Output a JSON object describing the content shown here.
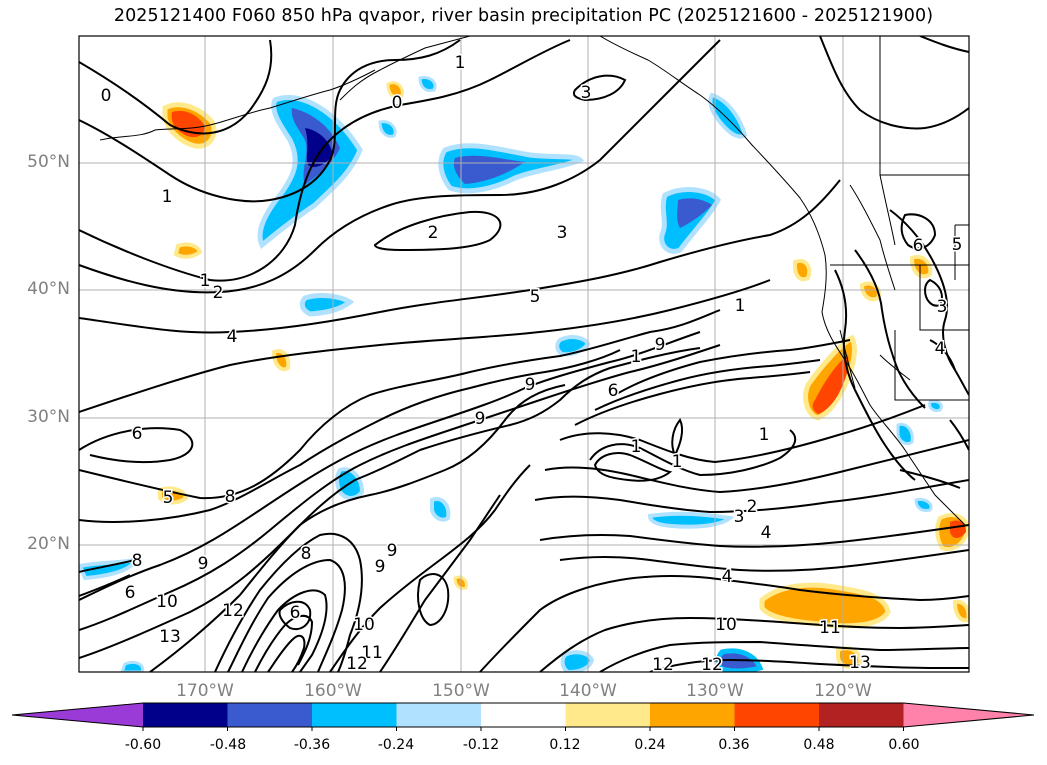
{
  "title": "2025121400 F060 850 hPa qvapor, river basin precipitation PC (2025121600 - 2025121900)",
  "map": {
    "lat_labels": [
      "50°N",
      "40°N",
      "30°N",
      "20°N"
    ],
    "lon_labels": [
      "170°W",
      "160°W",
      "150°W",
      "140°W",
      "130°W",
      "120°W"
    ]
  },
  "colorbar": {
    "ticks": [
      "-0.60",
      "-0.48",
      "-0.36",
      "-0.24",
      "-0.12",
      "0.12",
      "0.24",
      "0.36",
      "0.48",
      "0.60"
    ],
    "colors": [
      "#9a3bd8",
      "#00008b",
      "#3a5bd0",
      "#00bfff",
      "#b0e2ff",
      "#ffffff",
      "#ffe98a",
      "#ffa500",
      "#ff4500",
      "#b22222",
      "#ff82ab"
    ],
    "extend": "both"
  },
  "contour_labels": [
    {
      "text": "0"
    },
    {
      "text": "1"
    },
    {
      "text": "3"
    },
    {
      "text": "0"
    },
    {
      "text": "1"
    },
    {
      "text": "1"
    },
    {
      "text": "2"
    },
    {
      "text": "3"
    },
    {
      "text": "1"
    },
    {
      "text": "2"
    },
    {
      "text": "5"
    },
    {
      "text": "4"
    },
    {
      "text": "1"
    },
    {
      "text": "9"
    },
    {
      "text": "9"
    },
    {
      "text": "6"
    },
    {
      "text": "9"
    },
    {
      "text": "1"
    },
    {
      "text": "1"
    },
    {
      "text": "6"
    },
    {
      "text": "9"
    },
    {
      "text": "8"
    },
    {
      "text": "5"
    },
    {
      "text": "2"
    },
    {
      "text": "3"
    },
    {
      "text": "4"
    },
    {
      "text": "8"
    },
    {
      "text": "9"
    },
    {
      "text": "9"
    },
    {
      "text": "8"
    },
    {
      "text": "6"
    },
    {
      "text": "10"
    },
    {
      "text": "13"
    },
    {
      "text": "12"
    },
    {
      "text": "6"
    },
    {
      "text": "10"
    },
    {
      "text": "11"
    },
    {
      "text": "12"
    },
    {
      "text": "4"
    },
    {
      "text": "10"
    },
    {
      "text": "11"
    },
    {
      "text": "13"
    },
    {
      "text": "12"
    },
    {
      "text": "12"
    },
    {
      "text": "3"
    },
    {
      "text": "4"
    },
    {
      "text": "6"
    },
    {
      "text": "5"
    },
    {
      "text": "1"
    }
  ]
}
